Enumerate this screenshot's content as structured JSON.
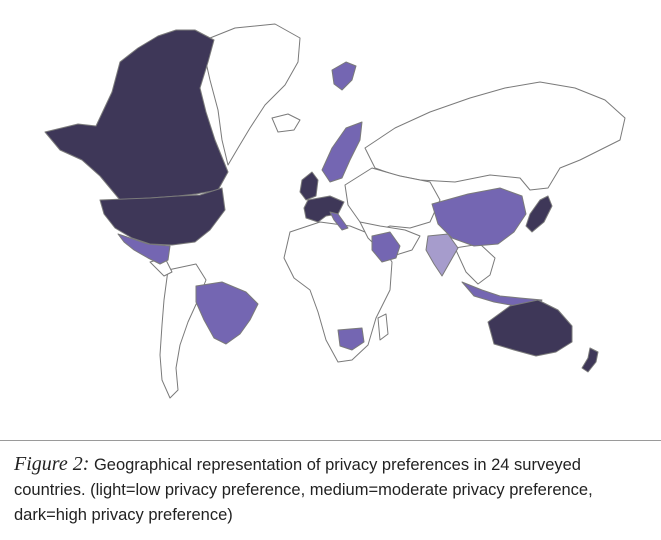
{
  "caption": {
    "figure_label": "Figure 2:",
    "text": " Geographical representation of privacy preferences in 24 surveyed countries.  (light=low privacy preference, medium=moderate privacy preference, dark=high privacy preference)"
  },
  "legend_colors": {
    "none": "#ffffff",
    "light": "#a69ccc",
    "medium": "#7466b2",
    "dark": "#3e3758"
  },
  "regions": [
    {
      "name": "Canada",
      "level": "dark"
    },
    {
      "name": "United States",
      "level": "dark"
    },
    {
      "name": "Alaska",
      "level": "dark"
    },
    {
      "name": "Mexico",
      "level": "medium"
    },
    {
      "name": "Brazil",
      "level": "medium"
    },
    {
      "name": "United Kingdom",
      "level": "dark"
    },
    {
      "name": "Ireland",
      "level": "dark"
    },
    {
      "name": "France",
      "level": "dark"
    },
    {
      "name": "Germany",
      "level": "dark"
    },
    {
      "name": "Spain",
      "level": "dark"
    },
    {
      "name": "Italy",
      "level": "medium"
    },
    {
      "name": "Sweden",
      "level": "medium"
    },
    {
      "name": "Norway",
      "level": "medium"
    },
    {
      "name": "Svalbard",
      "level": "medium"
    },
    {
      "name": "Saudi Arabia",
      "level": "medium"
    },
    {
      "name": "India",
      "level": "light"
    },
    {
      "name": "China",
      "level": "medium"
    },
    {
      "name": "Japan",
      "level": "dark"
    },
    {
      "name": "Indonesia",
      "level": "medium"
    },
    {
      "name": "Australia",
      "level": "dark"
    },
    {
      "name": "New Zealand",
      "level": "dark"
    },
    {
      "name": "South Africa",
      "level": "medium"
    }
  ]
}
